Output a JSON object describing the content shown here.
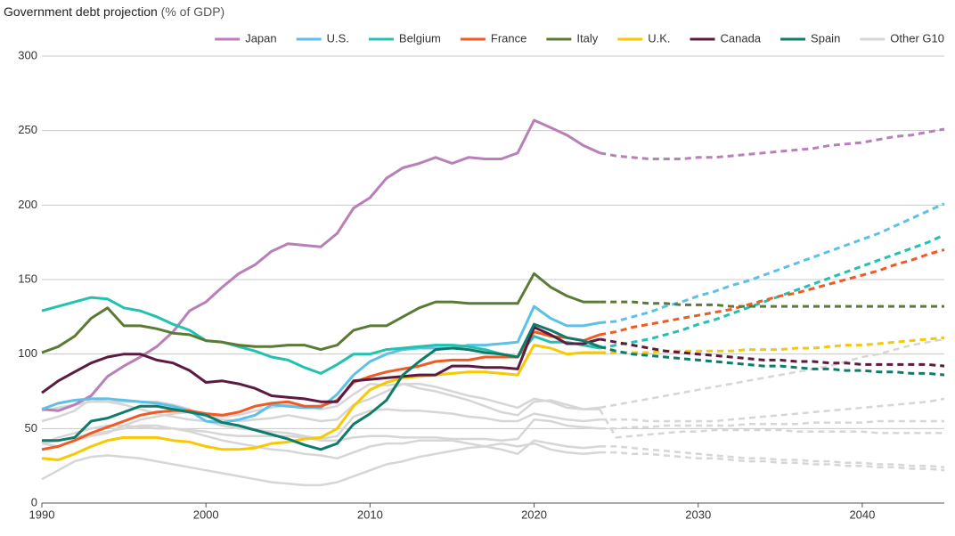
{
  "chart_data": {
    "type": "line",
    "title": "Government debt projection",
    "subtitle": "(% of GDP)",
    "x": [
      1990,
      1991,
      1992,
      1993,
      1994,
      1995,
      1996,
      1997,
      1998,
      1999,
      2000,
      2001,
      2002,
      2003,
      2004,
      2005,
      2006,
      2007,
      2008,
      2009,
      2010,
      2011,
      2012,
      2013,
      2014,
      2015,
      2016,
      2017,
      2018,
      2019,
      2020,
      2021,
      2022,
      2023,
      2024,
      2025,
      2026,
      2027,
      2028,
      2029,
      2030,
      2031,
      2032,
      2033,
      2034,
      2035,
      2036,
      2037,
      2038,
      2039,
      2040,
      2041,
      2042,
      2043,
      2044,
      2045
    ],
    "xlim": [
      1990,
      2045
    ],
    "xticks": [
      1990,
      2000,
      2010,
      2020,
      2030,
      2040
    ],
    "ylim": [
      0,
      300
    ],
    "yticks": [
      0,
      50,
      100,
      150,
      200,
      250,
      300
    ],
    "grid": true,
    "forecast_start": 2024,
    "legend": "top-right",
    "series": [
      {
        "name": "Japan",
        "color": "#b97fb8",
        "values": [
          63,
          62,
          66,
          72,
          85,
          92,
          98,
          105,
          115,
          129,
          135,
          145,
          154,
          160,
          169,
          174,
          173,
          172,
          181,
          198,
          205,
          218,
          225,
          228,
          232,
          228,
          232,
          231,
          231,
          235,
          257,
          252,
          247,
          240,
          235,
          233,
          232,
          231,
          231,
          231,
          232,
          232,
          233,
          234,
          235,
          236,
          237,
          238,
          240,
          241,
          242,
          244,
          246,
          247,
          249,
          251
        ]
      },
      {
        "name": "U.S.",
        "color": "#5cc1e8",
        "values": [
          63,
          67,
          69,
          70,
          70,
          69,
          68,
          67,
          65,
          62,
          55,
          54,
          56,
          59,
          66,
          65,
          64,
          64,
          73,
          86,
          95,
          100,
          103,
          104,
          104,
          104,
          106,
          106,
          107,
          108,
          132,
          124,
          119,
          119,
          121,
          122,
          125,
          128,
          132,
          135,
          139,
          142,
          146,
          149,
          153,
          157,
          161,
          165,
          169,
          173,
          177,
          181,
          186,
          191,
          196,
          201
        ]
      },
      {
        "name": "Belgium",
        "color": "#22c1b0",
        "values": [
          129,
          132,
          135,
          138,
          137,
          131,
          129,
          125,
          120,
          116,
          109,
          108,
          105,
          102,
          98,
          96,
          91,
          87,
          93,
          100,
          100,
          103,
          104,
          105,
          106,
          106,
          105,
          103,
          100,
          98,
          112,
          108,
          108,
          106,
          104,
          106,
          108,
          110,
          113,
          116,
          120,
          123,
          127,
          131,
          135,
          139,
          143,
          147,
          151,
          155,
          159,
          163,
          167,
          171,
          175,
          180
        ]
      },
      {
        "name": "France",
        "color": "#f15a22",
        "values": [
          36,
          38,
          42,
          47,
          51,
          55,
          59,
          61,
          62,
          62,
          60,
          59,
          61,
          65,
          67,
          68,
          65,
          65,
          69,
          81,
          85,
          88,
          90,
          92,
          95,
          96,
          96,
          98,
          98,
          98,
          115,
          112,
          111,
          109,
          113,
          115,
          118,
          120,
          122,
          124,
          126,
          128,
          130,
          133,
          136,
          139,
          141,
          144,
          147,
          150,
          153,
          156,
          160,
          163,
          167,
          170
        ]
      },
      {
        "name": "Italy",
        "color": "#5b7a35",
        "values": [
          101,
          105,
          112,
          124,
          131,
          119,
          119,
          117,
          114,
          113,
          109,
          108,
          106,
          105,
          105,
          106,
          106,
          103,
          106,
          116,
          119,
          119,
          125,
          131,
          135,
          135,
          134,
          134,
          134,
          134,
          154,
          145,
          139,
          135,
          135,
          135,
          135,
          134,
          134,
          133,
          133,
          133,
          132,
          132,
          132,
          132,
          132,
          132,
          132,
          132,
          132,
          132,
          132,
          132,
          132,
          132
        ]
      },
      {
        "name": "U.K.",
        "color": "#f7c900",
        "values": [
          30,
          29,
          33,
          38,
          42,
          44,
          44,
          44,
          42,
          41,
          38,
          36,
          36,
          37,
          40,
          41,
          43,
          44,
          50,
          65,
          76,
          81,
          84,
          85,
          86,
          87,
          88,
          88,
          87,
          86,
          106,
          104,
          100,
          101,
          101,
          101,
          101,
          101,
          102,
          102,
          102,
          102,
          102,
          103,
          103,
          103,
          104,
          104,
          105,
          106,
          106,
          107,
          108,
          109,
          110,
          111
        ]
      },
      {
        "name": "Canada",
        "color": "#5c1a40",
        "values": [
          74,
          82,
          88,
          94,
          98,
          100,
          100,
          96,
          94,
          89,
          81,
          82,
          80,
          77,
          72,
          71,
          70,
          68,
          68,
          82,
          83,
          84,
          85,
          86,
          86,
          92,
          92,
          91,
          91,
          90,
          118,
          113,
          107,
          107,
          110,
          108,
          106,
          104,
          102,
          101,
          100,
          99,
          98,
          97,
          96,
          96,
          95,
          95,
          94,
          94,
          93,
          93,
          93,
          93,
          93,
          92
        ]
      },
      {
        "name": "Spain",
        "color": "#0e7c6b",
        "values": [
          42,
          42,
          44,
          55,
          57,
          61,
          65,
          65,
          63,
          61,
          59,
          54,
          52,
          49,
          46,
          43,
          39,
          36,
          40,
          53,
          60,
          69,
          86,
          95,
          103,
          104,
          103,
          101,
          100,
          98,
          120,
          116,
          111,
          109,
          105,
          102,
          100,
          99,
          98,
          97,
          96,
          95,
          94,
          93,
          92,
          92,
          91,
          90,
          90,
          89,
          89,
          88,
          88,
          87,
          87,
          86
        ]
      },
      {
        "name": "Other G10",
        "color": "#d6d6d6",
        "values": [
          [
            55,
            58,
            62,
            70,
            68,
            68,
            68,
            68,
            66,
            63,
            58,
            56,
            55,
            56,
            57,
            59,
            57,
            55,
            56,
            66,
            70,
            75,
            80,
            80,
            78,
            75,
            72,
            70,
            67,
            64,
            70,
            68,
            64,
            63,
            64,
            66,
            68,
            70,
            72,
            74,
            76,
            78,
            80,
            82,
            84,
            86,
            88,
            90,
            92,
            95,
            98,
            100,
            103,
            106,
            108,
            110
          ],
          [
            62,
            64,
            66,
            68,
            68,
            66,
            63,
            60,
            58,
            56,
            55,
            52,
            50,
            49,
            48,
            47,
            45,
            43,
            45,
            58,
            62,
            63,
            62,
            62,
            61,
            60,
            58,
            57,
            55,
            55,
            60,
            58,
            56,
            55,
            56,
            56,
            56,
            55,
            55,
            55,
            55,
            55,
            56,
            57,
            58,
            59,
            60,
            61,
            62,
            63,
            64,
            65,
            66,
            67,
            68,
            70
          ],
          [
            40,
            44,
            47,
            50,
            52,
            52,
            51,
            50,
            50,
            49,
            48,
            46,
            45,
            45,
            45,
            45,
            44,
            42,
            42,
            44,
            45,
            45,
            44,
            44,
            44,
            43,
            43,
            43,
            42,
            43,
            56,
            55,
            52,
            51,
            50,
            50,
            51,
            51,
            52,
            52,
            52,
            52,
            52,
            53,
            53,
            53,
            53,
            54,
            54,
            54,
            54,
            55,
            55,
            55,
            55,
            55
          ],
          [
            40,
            38,
            42,
            45,
            47,
            52,
            56,
            58,
            60,
            61,
            59,
            58,
            59,
            62,
            64,
            66,
            65,
            63,
            65,
            73,
            80,
            79,
            80,
            77,
            75,
            72,
            69,
            65,
            61,
            59,
            68,
            69,
            66,
            63,
            63,
            44,
            45,
            46,
            47,
            48,
            48,
            49,
            49,
            49,
            49,
            49,
            48,
            48,
            48,
            48,
            48,
            47,
            47,
            47,
            47,
            47
          ],
          [
            16,
            22,
            28,
            31,
            32,
            31,
            30,
            28,
            26,
            24,
            22,
            20,
            18,
            16,
            14,
            13,
            12,
            12,
            14,
            18,
            22,
            26,
            28,
            31,
            33,
            35,
            37,
            38,
            40,
            38,
            40,
            36,
            34,
            33,
            34,
            34,
            33,
            33,
            32,
            31,
            30,
            30,
            29,
            28,
            28,
            27,
            27,
            26,
            26,
            25,
            25,
            24,
            24,
            23,
            23,
            22
          ],
          [
            40,
            42,
            44,
            46,
            48,
            50,
            52,
            52,
            50,
            48,
            45,
            42,
            40,
            38,
            36,
            35,
            33,
            32,
            30,
            34,
            38,
            40,
            40,
            42,
            42,
            42,
            40,
            38,
            36,
            33,
            42,
            40,
            38,
            37,
            38,
            38,
            37,
            36,
            35,
            34,
            33,
            32,
            31,
            30,
            30,
            29,
            29,
            28,
            28,
            27,
            27,
            26,
            26,
            25,
            25,
            24
          ]
        ]
      }
    ]
  }
}
